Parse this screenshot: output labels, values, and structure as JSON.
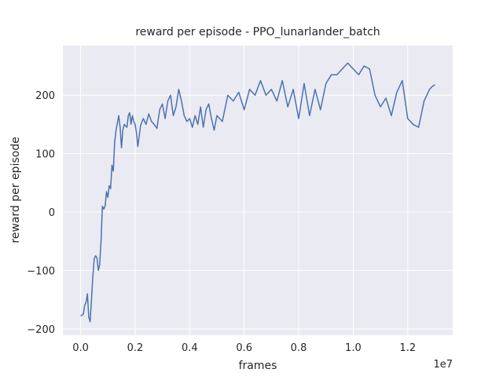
{
  "chart_data": {
    "type": "line",
    "title": "reward per episode - PPO_lunarlander_batch",
    "xlabel": "frames",
    "ylabel": "reward per episode",
    "x_offset_label": "1e7",
    "color": "#4c72b0",
    "grid": true,
    "xlim": [
      -650000,
      13650000
    ],
    "ylim": [
      -211,
      285
    ],
    "xticks": [
      {
        "value": 0,
        "label": "0.0"
      },
      {
        "value": 2000000,
        "label": "0.2"
      },
      {
        "value": 4000000,
        "label": "0.4"
      },
      {
        "value": 6000000,
        "label": "0.6"
      },
      {
        "value": 8000000,
        "label": "0.8"
      },
      {
        "value": 10000000,
        "label": "1.0"
      },
      {
        "value": 12000000,
        "label": "1.2"
      }
    ],
    "yticks": [
      {
        "value": -200,
        "label": "−200"
      },
      {
        "value": -100,
        "label": "−100"
      },
      0,
      100,
      200
    ],
    "x": [
      0,
      100000,
      150000,
      200000,
      250000,
      300000,
      350000,
      400000,
      450000,
      500000,
      550000,
      600000,
      650000,
      700000,
      750000,
      800000,
      850000,
      900000,
      950000,
      1000000,
      1050000,
      1100000,
      1150000,
      1200000,
      1250000,
      1300000,
      1400000,
      1450000,
      1500000,
      1550000,
      1600000,
      1700000,
      1750000,
      1800000,
      1850000,
      1900000,
      1950000,
      2000000,
      2050000,
      2100000,
      2150000,
      2200000,
      2300000,
      2400000,
      2500000,
      2600000,
      2700000,
      2800000,
      2900000,
      3000000,
      3100000,
      3200000,
      3300000,
      3400000,
      3500000,
      3600000,
      3700000,
      3800000,
      3900000,
      4000000,
      4100000,
      4200000,
      4300000,
      4400000,
      4500000,
      4600000,
      4700000,
      4800000,
      4900000,
      5000000,
      5200000,
      5400000,
      5600000,
      5800000,
      6000000,
      6200000,
      6400000,
      6600000,
      6800000,
      7000000,
      7200000,
      7400000,
      7600000,
      7800000,
      8000000,
      8200000,
      8400000,
      8600000,
      8800000,
      9000000,
      9200000,
      9400000,
      9600000,
      9800000,
      10000000,
      10200000,
      10400000,
      10600000,
      10800000,
      11000000,
      11200000,
      11400000,
      11600000,
      11800000,
      12000000,
      12200000,
      12400000,
      12600000,
      12800000,
      12900000,
      13000000
    ],
    "values": [
      -178,
      -175,
      -160,
      -155,
      -140,
      -180,
      -188,
      -150,
      -110,
      -80,
      -75,
      -78,
      -100,
      -90,
      -50,
      10,
      5,
      10,
      35,
      25,
      45,
      40,
      80,
      70,
      120,
      140,
      165,
      145,
      110,
      140,
      150,
      145,
      165,
      170,
      150,
      165,
      155,
      150,
      135,
      112,
      130,
      148,
      160,
      150,
      168,
      155,
      150,
      143,
      175,
      185,
      160,
      190,
      200,
      165,
      180,
      210,
      190,
      165,
      155,
      160,
      145,
      165,
      150,
      180,
      145,
      175,
      185,
      160,
      140,
      165,
      155,
      200,
      190,
      205,
      175,
      210,
      200,
      225,
      200,
      210,
      190,
      225,
      180,
      210,
      160,
      220,
      165,
      210,
      175,
      220,
      235,
      235,
      245,
      255,
      245,
      235,
      250,
      245,
      200,
      180,
      195,
      165,
      205,
      225,
      160,
      150,
      145,
      190,
      210,
      215,
      218
    ]
  }
}
